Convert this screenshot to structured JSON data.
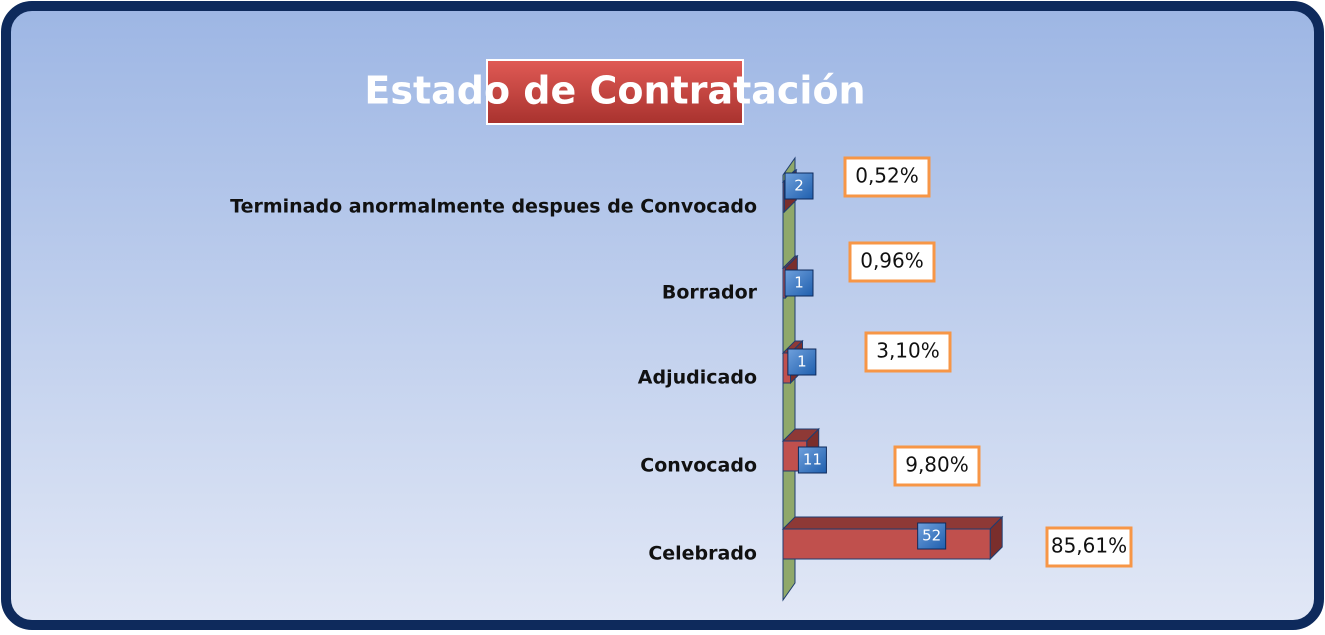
{
  "chart_data": {
    "type": "bar",
    "title": "Estado de Contratación",
    "categories": [
      "Terminado anormalmente despues de Convocado",
      "Borrador",
      "Adjudicado",
      "Convocado",
      "Celebrado"
    ],
    "values": [
      0.52,
      0.96,
      3.1,
      9.8,
      85.61
    ],
    "value_labels": [
      "0,52%",
      "0,96%",
      "3,10%",
      "9,80%",
      "85,61%"
    ],
    "counts": [
      2,
      1,
      1,
      11,
      52
    ],
    "color": "#c0504d"
  }
}
